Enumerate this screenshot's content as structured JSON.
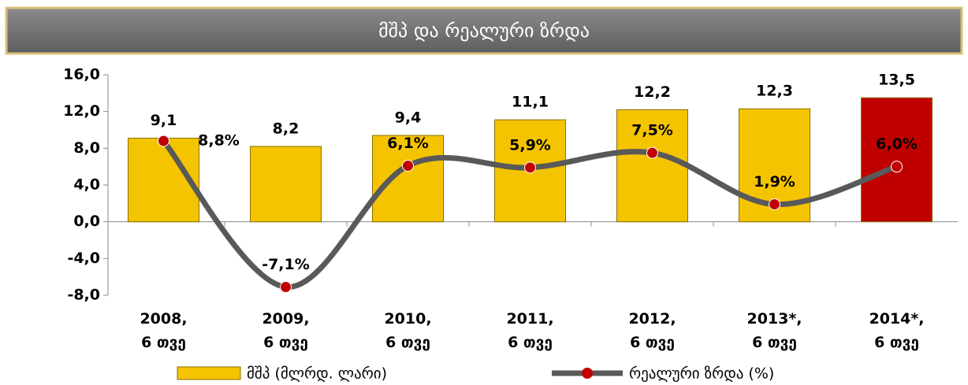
{
  "chart_data": {
    "type": "bar",
    "title": "მშპ და რეალური ზრდა",
    "categories": [
      "2008,\n6 თვე",
      "2009,\n6 თვე",
      "2010,\n6 თვე",
      "2011,\n6 თვე",
      "2012,\n6 თვე",
      "2013*,\n6 თვე",
      "2014*,\n6 თვე"
    ],
    "series": [
      {
        "name": "მშპ (მლრდ. ლარი)",
        "type": "bar",
        "color": "#f5c400",
        "colors": [
          "#f5c400",
          "#f5c400",
          "#f5c400",
          "#f5c400",
          "#f5c400",
          "#f5c400",
          "#c00000"
        ],
        "values": [
          9.1,
          8.2,
          9.4,
          11.1,
          12.2,
          12.3,
          13.5
        ],
        "value_labels": [
          "9,1",
          "8,2",
          "9,4",
          "11,1",
          "12,2",
          "12,3",
          "13,5"
        ]
      },
      {
        "name": "რეალური ზრდა (%)",
        "type": "line",
        "color": "#595959",
        "marker_color": "#c00000",
        "values": [
          8.8,
          -7.1,
          6.1,
          5.9,
          7.5,
          1.9,
          6.0
        ],
        "value_labels": [
          "8,8%",
          "-7,1%",
          "6,1%",
          "5,9%",
          "7,5%",
          "1,9%",
          "6,0%"
        ]
      }
    ],
    "ylim": [
      -8,
      16
    ],
    "yticks": [
      {
        "value": -8,
        "label": "-8,0"
      },
      {
        "value": -4,
        "label": "-4,0"
      },
      {
        "value": 0,
        "label": "0,0"
      },
      {
        "value": 4,
        "label": "4,0"
      },
      {
        "value": 8,
        "label": "8,0"
      },
      {
        "value": 12,
        "label": "12,0"
      },
      {
        "value": 16,
        "label": "16,0"
      }
    ],
    "legend": "bottom"
  }
}
